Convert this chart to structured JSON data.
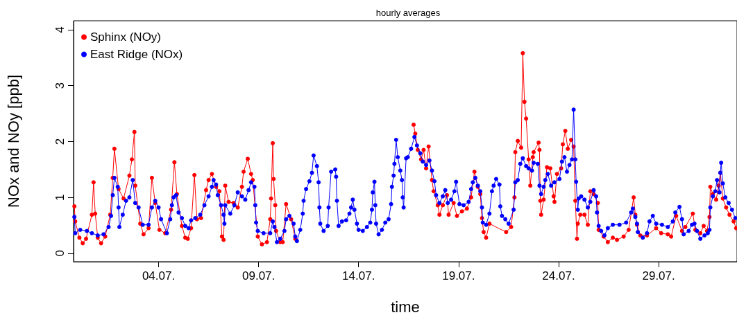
{
  "chart_data": {
    "type": "line",
    "title": "hourly averages",
    "xlabel": "time",
    "ylabel": "NOx and NOy [ppb]",
    "xlim": [
      "--06-29T18:00",
      "--08-01T22:00"
    ],
    "xticks": [
      {
        "value": "--07-04",
        "label": "04.07."
      },
      {
        "value": "--07-09",
        "label": "09.07."
      },
      {
        "value": "--07-14",
        "label": "14.07."
      },
      {
        "value": "--07-19",
        "label": "19.07."
      },
      {
        "value": "--07-24",
        "label": "24.07."
      },
      {
        "value": "--07-29",
        "label": "29.07."
      }
    ],
    "ylim": [
      -0.15,
      4.16
    ],
    "yticks": [
      0,
      1,
      2,
      3,
      4
    ],
    "grid": false,
    "legend": "top left",
    "marker": "circle",
    "line_style": "solid",
    "series": [
      {
        "name": "Sphinx (NOy)",
        "color": "#ff0000",
        "x": [
          "--06-29T19:00",
          "--06-29T20:00",
          "--06-30T01:00",
          "--06-30T05:00",
          "--06-30T09:00",
          "--06-30T16:00",
          "--06-30T18:00",
          "--06-30T20:00",
          "--06-30T23:00",
          "--07-01T03:00",
          "--07-01T08:00",
          "--07-01T14:00",
          "--07-01T17:00",
          "--07-01T19:00",
          "--07-02T00:00",
          "--07-02T06:00",
          "--07-02T13:00",
          "--07-02T16:00",
          "--07-02T19:00",
          "--07-02T20:00",
          "--07-03T02:00",
          "--07-03T06:00",
          "--07-03T12:00",
          "--07-03T16:00",
          "--07-03T20:00",
          "--07-04T01:00",
          "--07-04T08:00",
          "--07-04T15:00",
          "--07-04T19:00",
          "--07-04T22:00",
          "--07-05T04:00",
          "--07-05T08:00",
          "--07-05T11:00",
          "--07-05T15:00",
          "--07-05T19:00",
          "--07-05T22:00",
          "--07-06T03:00",
          "--07-06T09:00",
          "--07-06T12:00",
          "--07-06T16:00",
          "--07-06T21:00",
          "--07-07T01:00",
          "--07-07T04:00",
          "--07-07T06:00",
          "--07-07T08:00",
          "--07-07T12:00",
          "--07-07T18:00",
          "--07-07T23:00",
          "--07-08T04:00",
          "--07-08T06:00",
          "--07-08T11:00",
          "--07-08T15:00",
          "--07-08T17:00",
          "--07-08T23:00",
          "--07-09T04:00",
          "--07-09T10:00",
          "--07-09T14:00",
          "--07-09T15:00",
          "--07-09T17:00",
          "--07-09T18:00",
          "--07-09T20:00",
          "--07-09T21:00",
          "--07-10T02:00",
          "--07-10T05:00",
          "--07-10T09:00",
          "--07-10T15:00",
          "--07-10T20:00",
          "--07-13T12:00",
          "--07-16T18:00",
          "--07-16T20:00",
          "--07-16T23:00",
          "--07-17T03:00",
          "--07-17T06:00",
          "--07-17T09:00",
          "--07-17T12:00",
          "--07-17T16:00",
          "--07-17T18:00",
          "--07-17T23:00",
          "--07-18T01:00",
          "--07-18T05:00",
          "--07-18T10:00",
          "--07-18T12:00",
          "--07-18T18:00",
          "--07-18T22:00",
          "--07-19T04:00",
          "--07-19T10:00",
          "--07-19T15:00",
          "--07-19T19:00",
          "--07-19T23:00",
          "--07-20T02:00",
          "--07-20T04:00",
          "--07-20T06:00",
          "--07-20T09:00",
          "--07-20T13:00",
          "--07-21T09:00",
          "--07-21T15:00",
          "--07-21T19:00",
          "--07-21T20:00",
          "--07-21T23:00",
          "--07-22T03:00",
          "--07-22T05:00",
          "--07-22T07:00",
          "--07-22T09:00",
          "--07-22T12:00",
          "--07-22T14:00",
          "--07-22T17:00",
          "--07-22T18:00",
          "--07-23T00:00",
          "--07-23T01:00",
          "--07-23T02:00",
          "--07-23T03:00",
          "--07-23T06:00",
          "--07-23T10:00",
          "--07-23T14:00",
          "--07-23T18:00",
          "--07-23T19:00",
          "--07-23T22:00",
          "--07-24T03:00",
          "--07-24T05:00",
          "--07-24T08:00",
          "--07-24T11:00",
          "--07-24T15:00",
          "--07-24T18:00",
          "--07-24T20:00",
          "--07-24T22:00",
          "--07-24T23:00",
          "--07-25T02:00",
          "--07-25T07:00",
          "--07-25T11:00",
          "--07-25T14:00",
          "--07-25T18:00",
          "--07-25T23:00",
          "--07-26T00:00",
          "--07-26T06:00",
          "--07-26T11:00",
          "--07-26T17:00",
          "--07-26T22:00",
          "--07-27T06:00",
          "--07-27T12:00",
          "--07-27T18:00",
          "--07-27T20:00",
          "--07-27T22:00",
          "--07-28T02:00",
          "--07-28T10:00",
          "--07-28T21:00",
          "--07-29T03:00",
          "--07-29T11:00",
          "--07-29T15:00",
          "--07-29T21:00",
          "--07-30T04:00",
          "--07-30T08:00",
          "--07-30T17:00",
          "--07-30T20:00",
          "--07-31T02:00",
          "--07-31T06:00",
          "--07-31T10:00",
          "--07-31T13:00",
          "--07-31T14:00",
          "--07-31T17:00",
          "--07-31T21:00",
          "--08-01T00:00",
          "--08-01T02:00",
          "--08-01T05:00",
          "--08-01T09:00",
          "--08-01T13:00",
          "--08-01T18:00",
          "--08-01T21:00"
        ],
        "values": [
          0.84,
          0.57,
          0.28,
          0.18,
          0.26,
          0.69,
          1.27,
          0.71,
          0.28,
          0.18,
          0.3,
          0.69,
          1.35,
          1.87,
          1.15,
          0.98,
          1.39,
          1.68,
          2.17,
          1.21,
          0.53,
          0.34,
          0.45,
          1.35,
          0.9,
          0.42,
          0.36,
          0.78,
          1.63,
          1.06,
          0.49,
          0.28,
          0.26,
          0.45,
          1.4,
          0.61,
          0.63,
          1.13,
          1.31,
          1.42,
          1.19,
          1.11,
          0.3,
          0.24,
          1.21,
          0.92,
          0.9,
          0.82,
          1.19,
          1.46,
          1.69,
          1.42,
          1.31,
          0.3,
          0.16,
          0.2,
          0.61,
          0.98,
          1.97,
          1.33,
          0.86,
          0.4,
          0.2,
          0.2,
          0.88,
          0.61,
          0.26,
          null,
          2.3,
          2.14,
          1.85,
          1.68,
          1.85,
          1.52,
          1.91,
          1.31,
          1.11,
          0.86,
          0.69,
          0.86,
          1.04,
          0.69,
          0.9,
          0.67,
          0.75,
          0.8,
          1.0,
          1.46,
          1.19,
          1.06,
          0.63,
          0.38,
          0.28,
          0.53,
          0.38,
          0.47,
          1.0,
          1.81,
          2.01,
          1.89,
          3.58,
          2.71,
          2.41,
          1.68,
          1.21,
          1.72,
          1.81,
          1.98,
          1.85,
          0.94,
          0.69,
          0.96,
          1.54,
          1.52,
          1.02,
          0.92,
          1.42,
          1.52,
          1.95,
          2.19,
          1.87,
          2.03,
          1.91,
          0.94,
          0.26,
          0.53,
          0.69,
          0.69,
          0.51,
          1.11,
          1.06,
          0.9,
          0.42,
          0.3,
          0.2,
          0.28,
          0.24,
          0.3,
          0.42,
          1.0,
          0.69,
          0.51,
          0.32,
          0.32,
          0.45,
          0.36,
          0.34,
          0.3,
          0.67,
          0.4,
          0.47,
          0.71,
          0.42,
          0.36,
          0.49,
          0.4,
          0.65,
          1.19,
          1.06,
          0.96,
          1.21,
          1.44,
          0.98,
          0.82,
          0.69,
          0.57,
          0.45
        ]
      },
      {
        "name": "East Ridge (NOx)",
        "color": "#0000ff",
        "x": [
          "--06-29T19:00",
          "--06-29T20:00",
          "--06-30T02:00",
          "--06-30T10:00",
          "--06-30T16:00",
          "--06-30T23:00",
          "--07-01T06:00",
          "--07-01T12:00",
          "--07-01T15:00",
          "--07-01T17:00",
          "--07-01T19:00",
          "--07-01T23:00",
          "--07-02T00:00",
          "--07-02T01:00",
          "--07-02T05:00",
          "--07-02T09:00",
          "--07-02T13:00",
          "--07-02T17:00",
          "--07-02T20:00",
          "--07-03T00:00",
          "--07-03T05:00",
          "--07-03T12:00",
          "--07-03T16:00",
          "--07-03T20:00",
          "--07-04T00:00",
          "--07-04T03:00",
          "--07-04T10:00",
          "--07-04T14:00",
          "--07-04T16:00",
          "--07-04T18:00",
          "--07-04T21:00",
          "--07-05T00:00",
          "--07-05T04:00",
          "--07-05T08:00",
          "--07-05T12:00",
          "--07-05T15:00",
          "--07-05T20:00",
          "--07-06T02:00",
          "--07-06T07:00",
          "--07-06T12:00",
          "--07-06T16:00",
          "--07-06T18:00",
          "--07-06T21:00",
          "--07-06T23:00",
          "--07-07T03:00",
          "--07-07T06:00",
          "--07-07T07:00",
          "--07-07T08:00",
          "--07-07T14:00",
          "--07-07T19:00",
          "--07-07T23:00",
          "--07-08T04:00",
          "--07-08T08:00",
          "--07-08T12:00",
          "--07-08T15:00",
          "--07-08T19:00",
          "--07-08T20:00",
          "--07-08T21:00",
          "--07-08T23:00",
          "--07-09T06:00",
          "--07-09T14:00",
          "--07-09T17:00",
          "--07-09T19:00",
          "--07-09T22:00",
          "--07-10T02:00",
          "--07-10T07:00",
          "--07-10T09:00",
          "--07-10T13:00",
          "--07-10T18:00",
          "--07-10T20:00",
          "--07-10T22:00",
          "--07-11T02:00",
          "--07-11T05:00",
          "--07-11T06:00",
          "--07-11T09:00",
          "--07-11T13:00",
          "--07-11T16:00",
          "--07-11T18:00",
          "--07-11T22:00",
          "--07-12T00:00",
          "--07-12T01:00",
          "--07-12T02:00",
          "--07-12T06:00",
          "--07-12T11:00",
          "--07-12T12:00",
          "--07-12T15:00",
          "--07-12T20:00",
          "--07-12T21:00",
          "--07-12T22:00",
          "--07-13T00:00",
          "--07-13T04:00",
          "--07-13T09:00",
          "--07-13T13:00",
          "--07-13T15:00",
          "--07-13T17:00",
          "--07-13T19:00",
          "--07-13T22:00",
          "--07-14T00:00",
          "--07-14T05:00",
          "--07-14T10:00",
          "--07-14T14:00",
          "--07-14T16:00",
          "--07-14T17:00",
          "--07-14T19:00",
          "--07-14T20:00",
          "--07-14T21:00",
          "--07-15T00:00",
          "--07-15T04:00",
          "--07-15T08:00",
          "--07-15T12:00",
          "--07-15T15:00",
          "--07-15T16:00",
          "--07-15T18:00",
          "--07-15T19:00",
          "--07-15T21:00",
          "--07-15T23:00",
          "--07-16T02:00",
          "--07-16T04:00",
          "--07-16T05:00",
          "--07-16T06:00",
          "--07-16T09:00",
          "--07-16T11:00",
          "--07-16T15:00",
          "--07-16T19:00",
          "--07-16T22:00",
          "--07-17T02:00",
          "--07-17T05:00",
          "--07-17T09:00",
          "--07-17T13:00",
          "--07-17T16:00",
          "--07-17T19:00",
          "--07-17T21:00",
          "--07-18T01:00",
          "--07-18T05:00",
          "--07-18T08:00",
          "--07-18T11:00",
          "--07-18T15:00",
          "--07-18T19:00",
          "--07-18T21:00",
          "--07-19T01:00",
          "--07-19T06:00",
          "--07-19T12:00",
          "--07-19T15:00",
          "--07-19T17:00",
          "--07-19T20:00",
          "--07-19T23:00",
          "--07-20T02:00",
          "--07-20T04:00",
          "--07-20T05:00",
          "--07-20T09:00",
          "--07-20T13:00",
          "--07-20T16:00",
          "--07-20T18:00",
          "--07-20T21:00",
          "--07-21T01:00",
          "--07-21T02:00",
          "--07-21T04:00",
          "--07-21T08:00",
          "--07-21T12:00",
          "--07-21T18:00",
          "--07-21T20:00",
          "--07-21T23:00",
          "--07-22T02:00",
          "--07-22T05:00",
          "--07-22T09:00",
          "--07-22T12:00",
          "--07-22T16:00",
          "--07-22T18:00",
          "--07-22T23:00",
          "--07-23T01:00",
          "--07-23T03:00",
          "--07-23T06:00",
          "--07-23T08:00",
          "--07-23T11:00",
          "--07-23T15:00",
          "--07-23T19:00",
          "--07-24T01:00",
          "--07-24T04:00",
          "--07-24T07:00",
          "--07-24T10:00",
          "--07-24T13:00",
          "--07-24T16:00",
          "--07-24T18:00",
          "--07-24T20:00",
          "--07-24T21:00",
          "--07-24T23:00",
          "--07-25T00:00",
          "--07-25T03:00",
          "--07-25T07:00",
          "--07-25T11:00",
          "--07-25T14:00",
          "--07-25T18:00",
          "--07-25T21:00",
          "--07-25T22:00",
          "--07-26T00:00",
          "--07-26T03:00",
          "--07-26T07:00",
          "--07-26T11:00",
          "--07-26T17:00",
          "--07-27T01:00",
          "--07-27T09:00",
          "--07-27T15:00",
          "--07-27T17:00",
          "--07-27T20:00",
          "--07-27T22:00",
          "--07-27T23:00",
          "--07-28T05:00",
          "--07-28T10:00",
          "--07-28T13:00",
          "--07-28T17:00",
          "--07-28T21:00",
          "--07-29T04:00",
          "--07-29T11:00",
          "--07-29T17:00",
          "--07-29T20:00",
          "--07-30T01:00",
          "--07-30T04:00",
          "--07-30T06:00",
          "--07-30T12:00",
          "--07-30T16:00",
          "--07-30T19:00",
          "--07-30T22:00",
          "--07-31T02:00",
          "--07-31T07:00",
          "--07-31T11:00",
          "--07-31T13:00",
          "--07-31T14:00",
          "--07-31T17:00",
          "--07-31T20:00",
          "--07-31T22:00",
          "--08-01T01:00",
          "--08-01T02:00",
          "--08-01T03:00",
          "--08-01T05:00",
          "--08-01T08:00",
          "--08-01T12:00",
          "--08-01T16:00",
          "--08-01T20:00"
        ],
        "values": [
          0.65,
          0.36,
          0.42,
          0.4,
          0.36,
          0.32,
          0.34,
          0.47,
          0.67,
          1.04,
          1.35,
          1.19,
          0.82,
          0.47,
          0.69,
          0.94,
          1.0,
          1.31,
          0.9,
          0.82,
          0.51,
          0.51,
          0.82,
          0.94,
          0.82,
          0.61,
          0.36,
          0.61,
          0.86,
          1.0,
          1.04,
          0.73,
          0.63,
          0.49,
          0.45,
          0.59,
          0.63,
          0.69,
          0.86,
          1.02,
          1.19,
          1.31,
          1.23,
          1.04,
          0.86,
          0.69,
          0.53,
          0.86,
          0.71,
          0.86,
          1.09,
          1.02,
          0.96,
          1.13,
          1.27,
          1.19,
          0.86,
          0.55,
          0.4,
          0.36,
          0.36,
          0.57,
          0.47,
          0.2,
          0.26,
          0.4,
          0.61,
          0.67,
          0.53,
          0.3,
          0.22,
          0.42,
          0.71,
          0.94,
          1.15,
          1.29,
          1.44,
          1.75,
          1.56,
          1.27,
          0.82,
          0.53,
          0.4,
          0.49,
          0.82,
          1.46,
          1.5,
          1.37,
          0.94,
          0.49,
          0.57,
          0.59,
          0.71,
          0.82,
          0.96,
          0.78,
          0.53,
          0.42,
          0.4,
          0.47,
          0.55,
          0.78,
          1.09,
          1.28,
          0.86,
          0.53,
          0.34,
          0.42,
          0.55,
          0.61,
          0.88,
          1.19,
          1.39,
          1.6,
          2.03,
          1.72,
          1.48,
          1.31,
          1.0,
          0.82,
          1.7,
          1.72,
          1.87,
          2.08,
          1.93,
          1.79,
          1.64,
          1.58,
          1.66,
          1.48,
          1.29,
          1.04,
          0.9,
          1.02,
          1.13,
          0.9,
          0.96,
          1.11,
          1.28,
          0.88,
          0.86,
          0.92,
          1.15,
          1.27,
          1.35,
          1.21,
          1.11,
          0.82,
          0.55,
          0.51,
          0.71,
          1.11,
          1.21,
          1.33,
          1.23,
          0.84,
          0.67,
          0.61,
          0.53,
          0.78,
          1.27,
          1.31,
          1.6,
          1.7,
          1.56,
          1.52,
          1.48,
          1.62,
          1.6,
          1.21,
          1.06,
          1.19,
          1.31,
          1.42,
          1.21,
          1.27,
          1.33,
          1.64,
          1.72,
          1.46,
          1.58,
          1.68,
          2.57,
          1.68,
          1.28,
          0.78,
          0.98,
          1.02,
          0.96,
          0.82,
          0.92,
          1.13,
          1.02,
          0.73,
          0.49,
          0.4,
          0.32,
          0.45,
          0.51,
          0.51,
          0.55,
          0.73,
          0.8,
          0.65,
          0.53,
          0.38,
          0.28,
          0.36,
          0.57,
          0.67,
          0.53,
          0.51,
          0.47,
          0.57,
          0.73,
          0.83,
          0.61,
          0.34,
          0.4,
          0.51,
          0.53,
          0.4,
          0.26,
          0.32,
          0.36,
          0.42,
          0.82,
          1.02,
          1.11,
          1.31,
          1.09,
          1.44,
          1.62,
          1.25,
          1.0,
          0.9,
          0.78,
          0.63
        ]
      }
    ]
  }
}
